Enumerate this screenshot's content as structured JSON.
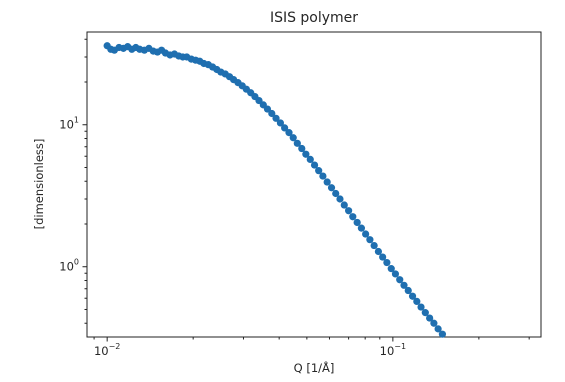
{
  "chart_data": {
    "type": "scatter",
    "title": "ISIS polymer",
    "xlabel": "Q [1/Å]",
    "ylabel": "[dimensionless]",
    "xscale": "log",
    "yscale": "log",
    "xlim": [
      0.0085,
      0.33
    ],
    "ylim": [
      0.32,
      45
    ],
    "xticks": [
      {
        "value": 0.01,
        "base": "10",
        "exp": "−2"
      },
      {
        "value": 0.1,
        "base": "10",
        "exp": "−1"
      }
    ],
    "yticks": [
      {
        "value": 1,
        "base": "10",
        "exp": "0"
      },
      {
        "value": 10,
        "base": "10",
        "exp": "1"
      }
    ],
    "grid": false,
    "marker_color": "#1f6fb0",
    "series": [
      {
        "points": [
          [
            0.01,
            36.0
          ],
          [
            0.0103,
            34.0
          ],
          [
            0.0106,
            33.5
          ],
          [
            0.011,
            35.0
          ],
          [
            0.0114,
            34.5
          ],
          [
            0.0118,
            35.5
          ],
          [
            0.0122,
            34.0
          ],
          [
            0.0126,
            35.0
          ],
          [
            0.013,
            34.0
          ],
          [
            0.0135,
            33.5
          ],
          [
            0.014,
            34.5
          ],
          [
            0.0145,
            33.0
          ],
          [
            0.015,
            32.5
          ],
          [
            0.0155,
            33.5
          ],
          [
            0.016,
            32.0
          ],
          [
            0.0166,
            31.0
          ],
          [
            0.0172,
            31.5
          ],
          [
            0.0178,
            30.5
          ],
          [
            0.0184,
            30.0
          ],
          [
            0.019,
            30.0
          ],
          [
            0.0197,
            29.0
          ],
          [
            0.0204,
            28.5
          ],
          [
            0.0211,
            28.0
          ],
          [
            0.0218,
            27.0
          ],
          [
            0.0226,
            26.5
          ],
          [
            0.0234,
            25.5
          ],
          [
            0.0242,
            24.5
          ],
          [
            0.025,
            23.5
          ],
          [
            0.0259,
            22.8
          ],
          [
            0.0268,
            21.8
          ],
          [
            0.0277,
            20.8
          ],
          [
            0.0287,
            19.8
          ],
          [
            0.0297,
            18.8
          ],
          [
            0.0307,
            17.8
          ],
          [
            0.0318,
            16.8
          ],
          [
            0.0329,
            15.8
          ],
          [
            0.034,
            14.8
          ],
          [
            0.0352,
            13.8
          ],
          [
            0.0364,
            12.9
          ],
          [
            0.0377,
            12.0
          ],
          [
            0.039,
            11.1
          ],
          [
            0.0404,
            10.3
          ],
          [
            0.0418,
            9.5
          ],
          [
            0.0433,
            8.8
          ],
          [
            0.0448,
            8.1
          ],
          [
            0.0463,
            7.4
          ],
          [
            0.048,
            6.8
          ],
          [
            0.0496,
            6.2
          ],
          [
            0.0514,
            5.7
          ],
          [
            0.0532,
            5.2
          ],
          [
            0.055,
            4.75
          ],
          [
            0.0569,
            4.35
          ],
          [
            0.0589,
            3.95
          ],
          [
            0.061,
            3.6
          ],
          [
            0.0631,
            3.28
          ],
          [
            0.0653,
            3.0
          ],
          [
            0.0676,
            2.72
          ],
          [
            0.07,
            2.48
          ],
          [
            0.0724,
            2.25
          ],
          [
            0.075,
            2.05
          ],
          [
            0.0776,
            1.87
          ],
          [
            0.0803,
            1.7
          ],
          [
            0.0831,
            1.55
          ],
          [
            0.086,
            1.41
          ],
          [
            0.089,
            1.28
          ],
          [
            0.0921,
            1.17
          ],
          [
            0.0953,
            1.07
          ],
          [
            0.0987,
            0.97
          ],
          [
            0.1021,
            0.89
          ],
          [
            0.1057,
            0.81
          ],
          [
            0.1094,
            0.74
          ],
          [
            0.1132,
            0.68
          ],
          [
            0.1172,
            0.62
          ],
          [
            0.1213,
            0.57
          ],
          [
            0.1255,
            0.52
          ],
          [
            0.1299,
            0.475
          ],
          [
            0.1345,
            0.435
          ],
          [
            0.1392,
            0.4
          ],
          [
            0.144,
            0.365
          ],
          [
            0.1491,
            0.335
          ]
        ]
      }
    ]
  }
}
